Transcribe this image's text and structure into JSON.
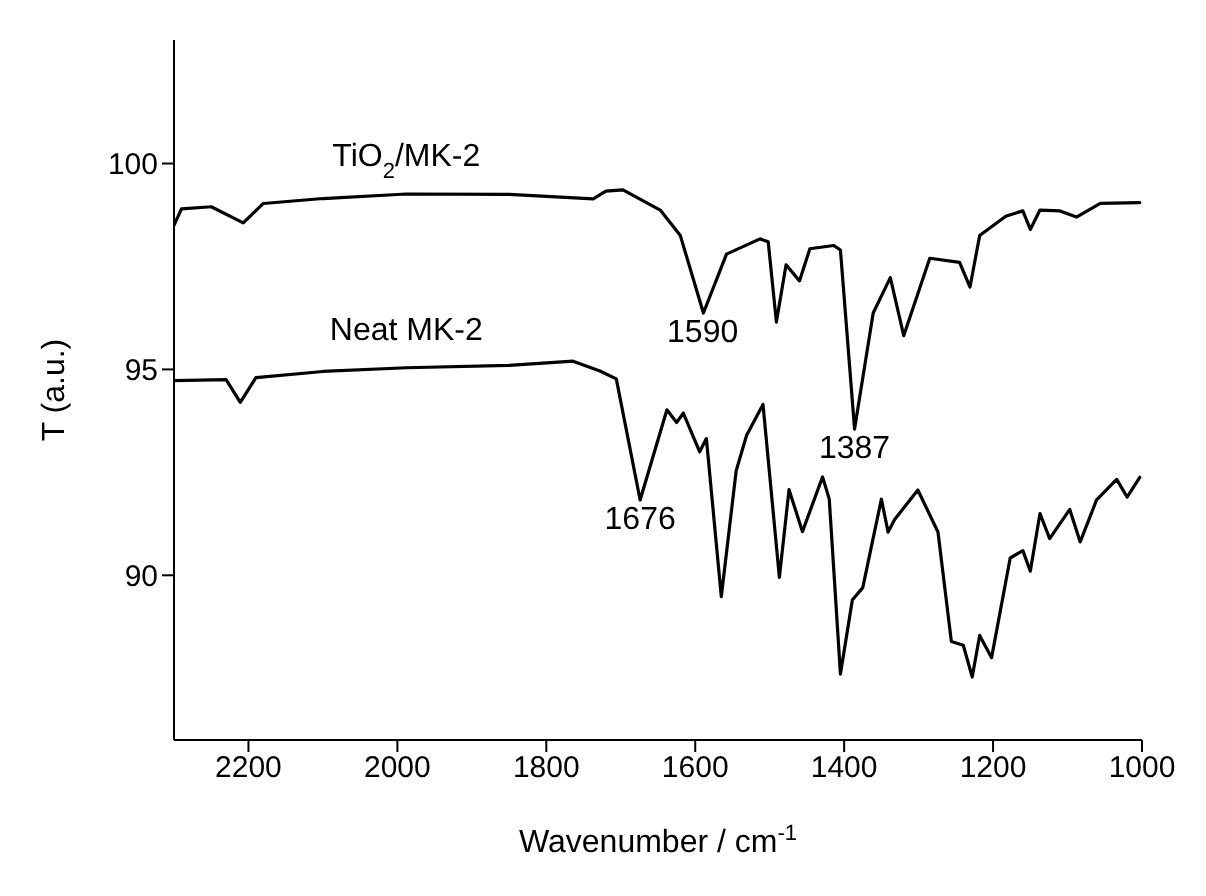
{
  "chart_data": {
    "type": "line",
    "xlabel": "Wavenumber / cm$^{-1}$",
    "ylabel": "T (a.u.)",
    "xlim": [
      2300,
      1000
    ],
    "xticks": [
      2200,
      2000,
      1800,
      1600,
      1400,
      1200,
      1000
    ],
    "ylim": [
      86,
      103
    ],
    "yticks": [
      90,
      95,
      100
    ],
    "grid": false,
    "legend": false,
    "marker": "none",
    "line_style": "solid",
    "series": [
      {
        "name": "TiO$_{2}$/MK-2",
        "color": "#000000",
        "x": [
          2300,
          2290,
          2250,
          2207,
          2180,
          2100,
          1988,
          1850,
          1737,
          1720,
          1697,
          1647,
          1620,
          1589,
          1558,
          1513,
          1502,
          1491,
          1478,
          1460,
          1446,
          1414,
          1405,
          1386,
          1361,
          1338,
          1320,
          1285,
          1245,
          1231,
          1218,
          1183,
          1160,
          1150,
          1137,
          1110,
          1088,
          1056,
          1003
        ],
        "values": [
          98.5,
          98.9,
          98.95,
          98.56,
          99.03,
          99.15,
          99.26,
          99.25,
          99.14,
          99.33,
          99.36,
          98.87,
          98.25,
          96.37,
          97.8,
          98.17,
          98.1,
          96.15,
          97.54,
          97.15,
          97.93,
          98.01,
          97.9,
          93.55,
          96.37,
          97.23,
          95.82,
          97.7,
          97.6,
          97.0,
          98.25,
          98.72,
          98.85,
          98.4,
          98.87,
          98.85,
          98.7,
          99.03,
          99.05
        ]
      },
      {
        "name": "Neat MK-2",
        "color": "#000000",
        "x": [
          2300,
          2230,
          2211,
          2190,
          2100,
          1988,
          1850,
          1764,
          1728,
          1706,
          1674,
          1638,
          1625,
          1616,
          1594,
          1585,
          1565,
          1545,
          1531,
          1509,
          1487,
          1474,
          1456,
          1429,
          1420,
          1405,
          1389,
          1375,
          1350,
          1341,
          1332,
          1301,
          1274,
          1256,
          1240,
          1228,
          1218,
          1202,
          1177,
          1160,
          1150,
          1137,
          1124,
          1097,
          1083,
          1061,
          1034,
          1020,
          1003
        ],
        "values": [
          94.73,
          94.75,
          94.2,
          94.8,
          94.95,
          95.04,
          95.1,
          95.2,
          94.96,
          94.77,
          91.83,
          94.02,
          93.71,
          93.94,
          93.0,
          93.32,
          89.48,
          92.54,
          93.4,
          94.15,
          89.95,
          92.08,
          91.06,
          92.39,
          91.85,
          87.6,
          89.4,
          89.7,
          91.85,
          91.05,
          91.36,
          92.07,
          91.05,
          88.39,
          88.3,
          87.53,
          88.54,
          88.0,
          90.42,
          90.6,
          90.1,
          91.5,
          90.89,
          91.6,
          90.81,
          91.83,
          92.33,
          91.9,
          92.38
        ]
      }
    ],
    "annotations": [
      {
        "text": "1590",
        "x": 1590,
        "y": 96.37
      },
      {
        "text": "1676",
        "x": 1674,
        "y": 91.83
      },
      {
        "text": "1387",
        "x": 1386,
        "y": 93.55
      }
    ]
  }
}
